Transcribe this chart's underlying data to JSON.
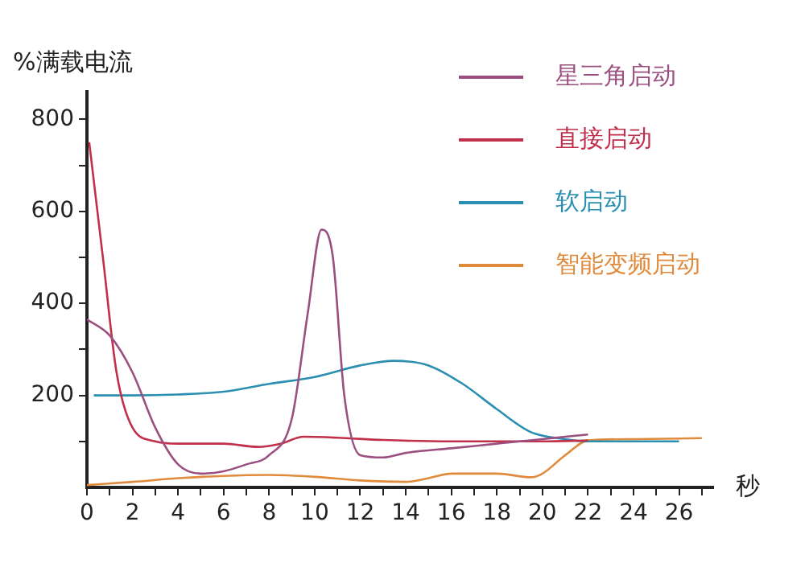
{
  "chart_data": {
    "type": "line",
    "ylabel": "%满载电流",
    "xlabel": "秒",
    "xlim": [
      0,
      27.5
    ],
    "ylim": [
      0,
      860
    ],
    "xticks": [
      0,
      {
        "value": 1,
        "label": null
      },
      2,
      {
        "value": 3,
        "label": null
      },
      4,
      {
        "value": 5,
        "label": null
      },
      6,
      {
        "value": 7,
        "label": null
      },
      8,
      {
        "value": 9,
        "label": null
      },
      10,
      {
        "value": 11,
        "label": null
      },
      12,
      {
        "value": 13,
        "label": null
      },
      14,
      {
        "value": 15,
        "label": null
      },
      16,
      {
        "value": 17,
        "label": null
      },
      18,
      {
        "value": 19,
        "label": null
      },
      20,
      {
        "value": 21,
        "label": null
      },
      22,
      {
        "value": 23,
        "label": null
      },
      24,
      {
        "value": 25,
        "label": null
      },
      26,
      {
        "value": 27,
        "label": null
      }
    ],
    "yticks": [
      {
        "value": 100,
        "label": null
      },
      200,
      {
        "value": 300,
        "label": null
      },
      400,
      {
        "value": 500,
        "label": null
      },
      600,
      {
        "value": 700,
        "label": null
      },
      800
    ],
    "grid": false,
    "legend": "top right",
    "marker": "none",
    "line_style": "solid",
    "series": [
      {
        "name": "星三角启动",
        "color": "#9b4f80",
        "x": [
          0,
          1,
          2,
          3,
          4,
          5,
          6,
          7,
          8,
          9,
          9.7,
          10.3,
          10.8,
          11.3,
          12,
          13,
          14,
          16,
          18,
          20,
          22
        ],
        "values": [
          365,
          330,
          250,
          130,
          50,
          30,
          35,
          50,
          70,
          150,
          380,
          560,
          500,
          200,
          70,
          65,
          75,
          85,
          95,
          105,
          115
        ]
      },
      {
        "name": "直接启动",
        "color": "#c0304a",
        "x": [
          0.1,
          0.7,
          1.3,
          2,
          3,
          4,
          6,
          7.5,
          8.5,
          9.5,
          11,
          13,
          16,
          20,
          22
        ],
        "values": [
          750,
          500,
          250,
          130,
          100,
          95,
          95,
          88,
          95,
          110,
          108,
          103,
          100,
          100,
          102
        ]
      },
      {
        "name": "软启动",
        "color": "#2a8fb0",
        "x": [
          0.3,
          2,
          4,
          6,
          8,
          10,
          12,
          13.5,
          15,
          16.5,
          18,
          19.5,
          21,
          22,
          26
        ],
        "values": [
          200,
          200,
          202,
          208,
          225,
          240,
          265,
          275,
          265,
          225,
          170,
          120,
          105,
          100,
          100
        ]
      },
      {
        "name": "智能变频启动",
        "color": "#e08a3c",
        "x": [
          0,
          2,
          4,
          6,
          8,
          10,
          12,
          14,
          15,
          16,
          18,
          19.5,
          20,
          21,
          22,
          24,
          27
        ],
        "values": [
          5,
          12,
          20,
          25,
          27,
          23,
          15,
          12,
          20,
          30,
          30,
          22,
          30,
          70,
          102,
          105,
          107
        ]
      }
    ]
  }
}
